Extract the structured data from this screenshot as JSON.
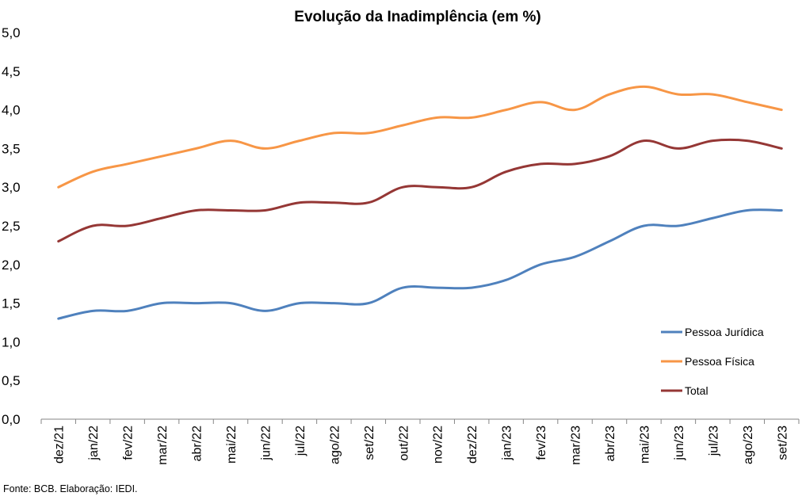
{
  "chart_data": {
    "type": "line",
    "title": "Evolução da Inadimplência (em %)",
    "xlabel": "",
    "ylabel": "",
    "categories": [
      "dez/21",
      "jan/22",
      "fev/22",
      "mar/22",
      "abr/22",
      "mai/22",
      "jun/22",
      "jul/22",
      "ago/22",
      "set/22",
      "out/22",
      "nov/22",
      "dez/22",
      "jan/23",
      "fev/23",
      "mar/23",
      "abr/23",
      "mai/23",
      "jun/23",
      "jul/23",
      "ago/23",
      "set/23"
    ],
    "ylim": [
      0,
      5
    ],
    "yticks": [
      "0,0",
      "0,5",
      "1,0",
      "1,5",
      "2,0",
      "2,5",
      "3,0",
      "3,5",
      "4,0",
      "4,5",
      "5,0"
    ],
    "grid": false,
    "legend_position": "bottom-right inside plot",
    "series": [
      {
        "name": "Pessoa Jurídica",
        "color": "#4f81bd",
        "values": [
          1.3,
          1.4,
          1.4,
          1.5,
          1.5,
          1.5,
          1.4,
          1.5,
          1.5,
          1.5,
          1.7,
          1.7,
          1.7,
          1.8,
          2.0,
          2.1,
          2.3,
          2.5,
          2.5,
          2.6,
          2.7,
          2.7
        ]
      },
      {
        "name": "Pessoa Física",
        "color": "#f79646",
        "values": [
          3.0,
          3.2,
          3.3,
          3.4,
          3.5,
          3.6,
          3.5,
          3.6,
          3.7,
          3.7,
          3.8,
          3.9,
          3.9,
          4.0,
          4.1,
          4.0,
          4.2,
          4.3,
          4.2,
          4.2,
          4.1,
          4.0
        ]
      },
      {
        "name": "Total",
        "color": "#953735",
        "values": [
          2.3,
          2.5,
          2.5,
          2.6,
          2.7,
          2.7,
          2.7,
          2.8,
          2.8,
          2.8,
          3.0,
          3.0,
          3.0,
          3.2,
          3.3,
          3.3,
          3.4,
          3.6,
          3.5,
          3.6,
          3.6,
          3.5
        ]
      }
    ]
  },
  "footer": {
    "source": "Fonte: BCB. Elaboração: IEDI."
  }
}
